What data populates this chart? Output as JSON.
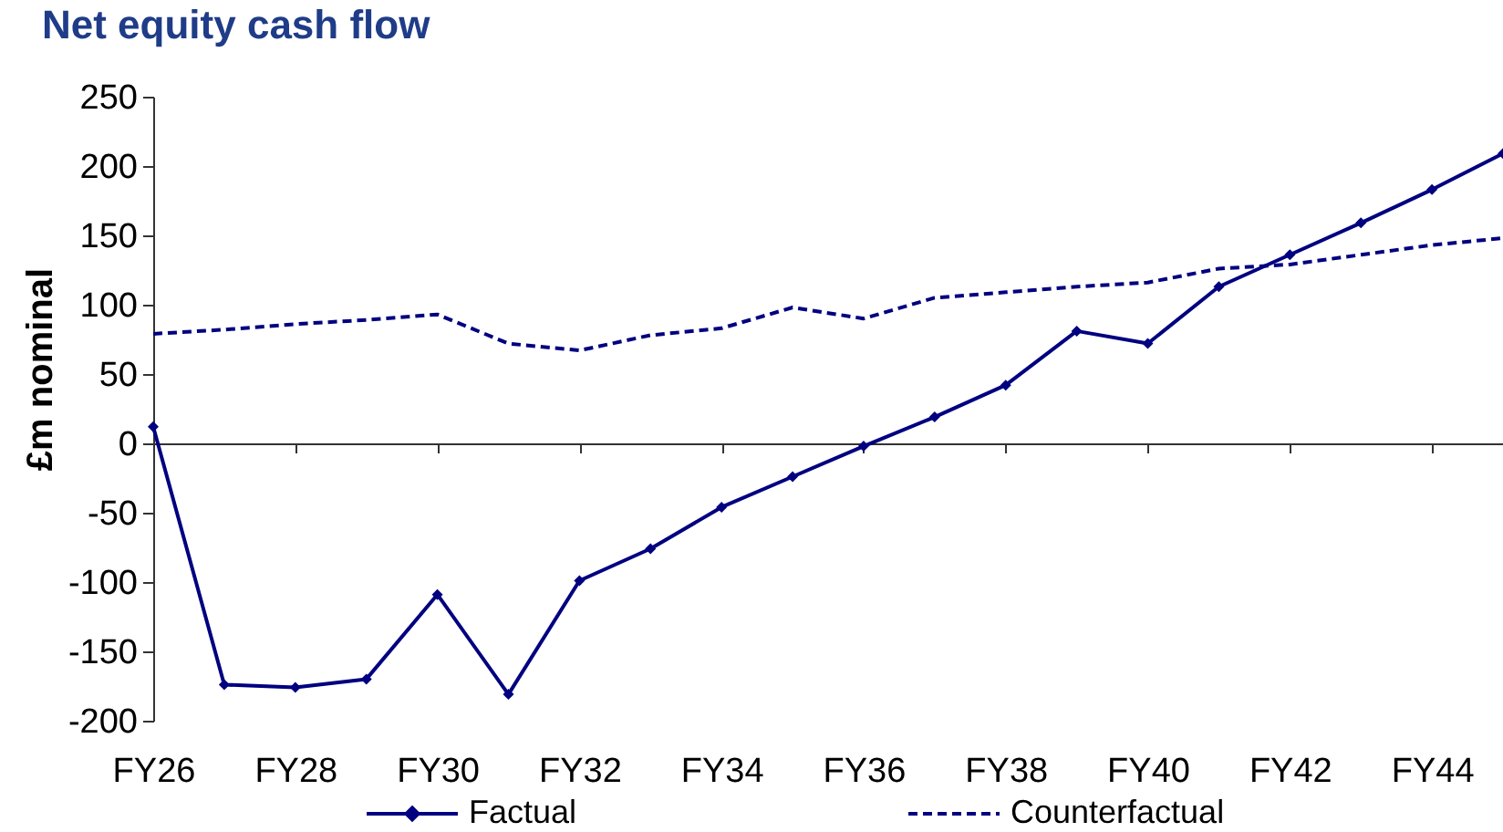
{
  "chart_data": {
    "type": "line",
    "title": "Net equity cash flow",
    "ylabel": "£m nominal",
    "categories": [
      "FY26",
      null,
      "FY28",
      null,
      "FY30",
      null,
      "FY32",
      null,
      "FY34",
      null,
      "FY36",
      null,
      "FY38",
      null,
      "FY40",
      null,
      "FY42",
      null,
      "FY44",
      null
    ],
    "series": [
      {
        "name": "Factual",
        "color": "#000080",
        "marker": "diamond",
        "line_style": "solid",
        "values": [
          12,
          -174,
          -176,
          -170,
          -109,
          -181,
          -99,
          -76,
          -46,
          -24,
          -2,
          19,
          42,
          81,
          72,
          113,
          136,
          159,
          183,
          209
        ]
      },
      {
        "name": "Counterfactual",
        "color": "#000080",
        "marker": "none",
        "line_style": "dashed",
        "values": [
          79,
          82,
          86,
          89,
          93,
          72,
          67,
          78,
          83,
          98,
          90,
          105,
          109,
          113,
          116,
          126,
          129,
          136,
          143,
          148
        ]
      }
    ],
    "ylim": [
      -200,
      250
    ],
    "yticks": [
      -200,
      -150,
      -100,
      -50,
      0,
      50,
      100,
      150,
      200,
      250
    ],
    "legend": "bottom"
  }
}
